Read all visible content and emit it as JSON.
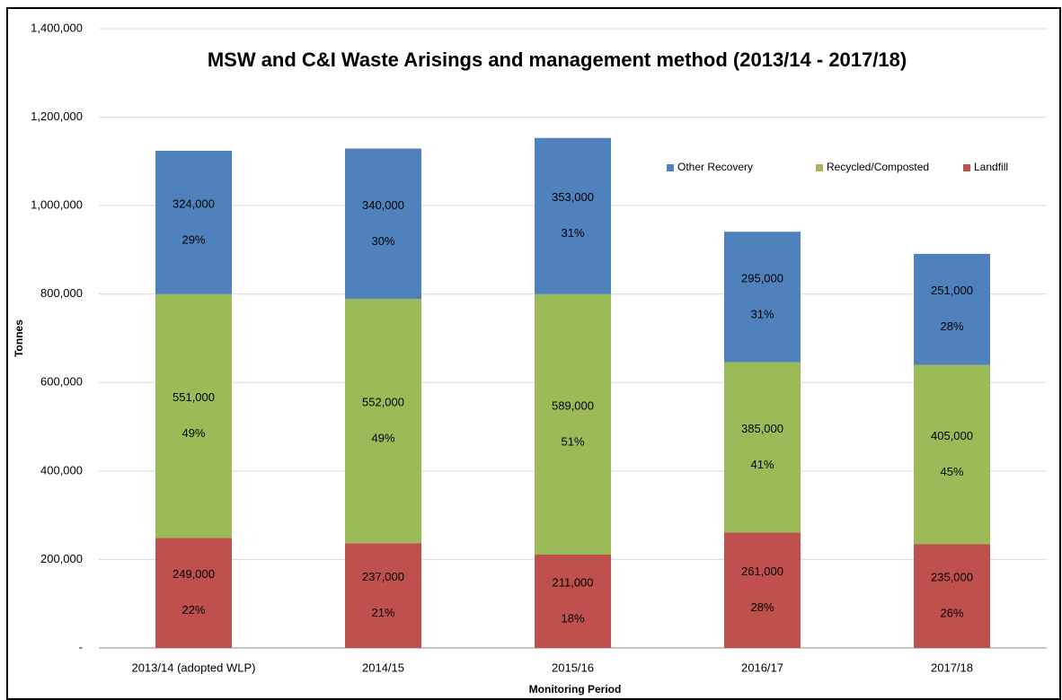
{
  "chart_data": {
    "type": "stacked_bar",
    "title": "MSW and C&I Waste Arisings and management method (2013/14 - 2017/18)",
    "x_label": "Monitoring Period",
    "y_label": "Tonnes",
    "categories": [
      "2013/14 (adopted WLP)",
      "2014/15",
      "2015/16",
      "2016/17",
      "2017/18"
    ],
    "series": [
      {
        "name": "Landfill",
        "color": "#c0504d",
        "values": [
          249000,
          237000,
          211000,
          261000,
          235000
        ],
        "value_labels": [
          "249,000",
          "237,000",
          "211,000",
          "261,000",
          "235,000"
        ],
        "shares": [
          22,
          21,
          18,
          28,
          26
        ],
        "share_labels": [
          "22%",
          "21%",
          "18%",
          "28%",
          "26%"
        ]
      },
      {
        "name": "Recycled/Composted",
        "color": "#9bbb59",
        "values": [
          551000,
          552000,
          589000,
          385000,
          405000
        ],
        "value_labels": [
          "551,000",
          "552,000",
          "589,000",
          "385,000",
          "405,000"
        ],
        "shares": [
          49,
          49,
          51,
          41,
          45
        ],
        "share_labels": [
          "49%",
          "49%",
          "51%",
          "41%",
          "45%"
        ]
      },
      {
        "name": "Other Recovery",
        "color": "#4f81bd",
        "values": [
          324000,
          340000,
          353000,
          295000,
          251000
        ],
        "value_labels": [
          "324,000",
          "340,000",
          "353,000",
          "295,000",
          "251,000"
        ],
        "shares": [
          29,
          30,
          31,
          31,
          28
        ],
        "share_labels": [
          "29%",
          "30%",
          "31%",
          "31%",
          "28%"
        ]
      }
    ],
    "ylim": [
      0,
      1400000
    ],
    "yticks": [
      {
        "value": 0,
        "label": "-"
      },
      {
        "value": 200000,
        "label": "200,000"
      },
      {
        "value": 400000,
        "label": "400,000"
      },
      {
        "value": 600000,
        "label": "600,000"
      },
      {
        "value": 800000,
        "label": "800,000"
      },
      {
        "value": 1000000,
        "label": "1,000,000"
      },
      {
        "value": 1200000,
        "label": "1,200,000"
      },
      {
        "value": 1400000,
        "label": "1,400,000"
      }
    ],
    "grid": true,
    "legend": "top-right"
  }
}
